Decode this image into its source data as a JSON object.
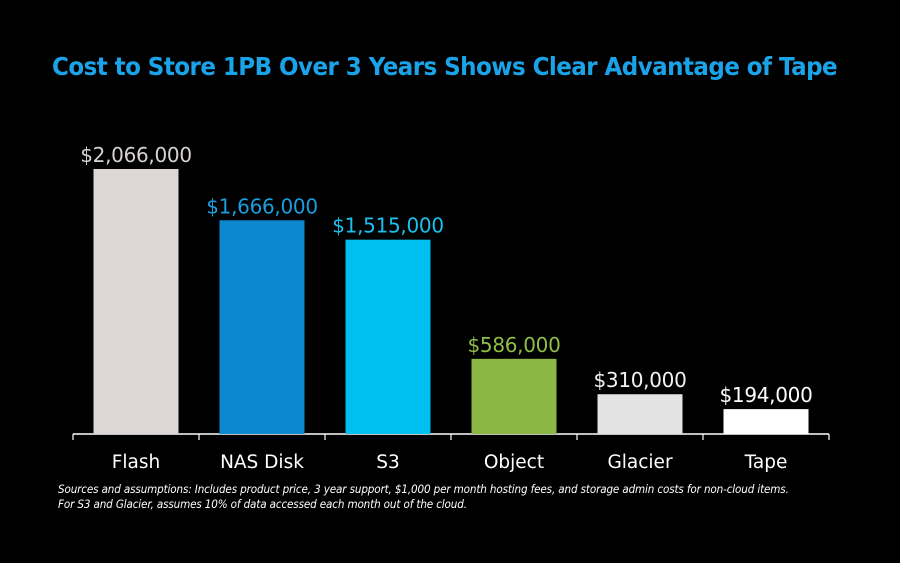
{
  "title": "Cost to Store 1PB Over 3 Years Shows Clear Advantage of Tape",
  "chart_data": {
    "type": "bar",
    "title": "Cost to Store 1PB Over 3 Years Shows Clear Advantage of Tape",
    "xlabel": "",
    "ylabel": "",
    "categories": [
      "Flash",
      "NAS Disk",
      "S3",
      "Object",
      "Glacier",
      "Tape"
    ],
    "values": [
      2066000,
      1666000,
      1515000,
      586000,
      310000,
      194000
    ],
    "value_labels": [
      "$2,066,000",
      "$1,666,000",
      "$1,515,000",
      "$586,000",
      "$310,000",
      "$194,000"
    ],
    "bar_colors": [
      "#ddd6d7",
      "#0b88d0",
      "#00c0f2",
      "#8bb744",
      "#e3e3e3",
      "#ffffff"
    ],
    "label_colors": [
      "#d8d2d3",
      "#1a9ee0",
      "#19c0f0",
      "#8fbe48",
      "#f2f2f2",
      "#ffffff"
    ],
    "ylim": [
      0,
      2200000
    ],
    "grid": false,
    "legend": "none"
  },
  "footnote": {
    "line1": "Sources and assumptions:  Includes product price, 3 year support, $1,000 per month hosting fees, and storage admin costs for non-cloud items.",
    "line2": "For S3 and Glacier, assumes 10% of data accessed each month out of the cloud."
  },
  "colors": {
    "background": "#000000",
    "title": "#1aa3e8",
    "axis": "#ffffff"
  }
}
